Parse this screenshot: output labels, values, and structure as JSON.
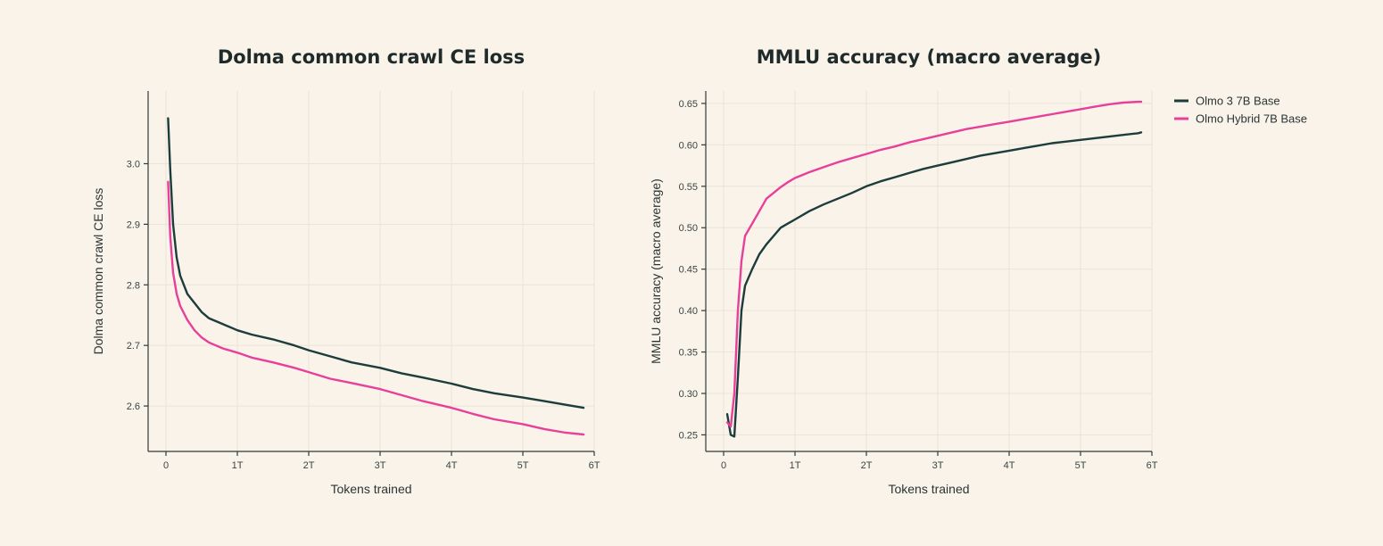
{
  "chart_data": [
    {
      "type": "line",
      "title": "Dolma common crawl CE loss",
      "xlabel": "Tokens trained",
      "ylabel": "Dolma common crawl CE loss",
      "xlim": [
        -0.25,
        6.0
      ],
      "ylim": [
        2.525,
        3.12
      ],
      "xticks": [
        0,
        1,
        2,
        3,
        4,
        5,
        6
      ],
      "xtick_labels": [
        "0",
        "1T",
        "2T",
        "3T",
        "4T",
        "5T",
        "6T"
      ],
      "yticks": [
        2.6,
        2.7,
        2.8,
        2.9,
        3.0
      ],
      "ytick_labels": [
        "2.6",
        "2.7",
        "2.8",
        "2.9",
        "3.0"
      ],
      "grid": true,
      "series": [
        {
          "name": "Olmo 3 7B Base",
          "color": "#1d3c3c",
          "x": [
            0.03,
            0.06,
            0.1,
            0.15,
            0.2,
            0.3,
            0.4,
            0.5,
            0.6,
            0.8,
            1.0,
            1.2,
            1.5,
            1.8,
            2.0,
            2.3,
            2.6,
            3.0,
            3.3,
            3.6,
            4.0,
            4.3,
            4.6,
            5.0,
            5.3,
            5.6,
            5.85
          ],
          "y": [
            3.075,
            2.99,
            2.9,
            2.845,
            2.815,
            2.785,
            2.77,
            2.755,
            2.745,
            2.735,
            2.725,
            2.718,
            2.71,
            2.7,
            2.692,
            2.682,
            2.672,
            2.663,
            2.654,
            2.647,
            2.637,
            2.628,
            2.621,
            2.614,
            2.608,
            2.602,
            2.597
          ]
        },
        {
          "name": "Olmo Hybrid 7B Base",
          "color": "#e8409a",
          "x": [
            0.03,
            0.06,
            0.1,
            0.15,
            0.2,
            0.3,
            0.4,
            0.5,
            0.6,
            0.8,
            1.0,
            1.2,
            1.5,
            1.8,
            2.0,
            2.3,
            2.6,
            3.0,
            3.3,
            3.6,
            4.0,
            4.3,
            4.6,
            5.0,
            5.3,
            5.6,
            5.85
          ],
          "y": [
            2.97,
            2.88,
            2.82,
            2.785,
            2.765,
            2.742,
            2.725,
            2.713,
            2.705,
            2.695,
            2.688,
            2.68,
            2.672,
            2.663,
            2.656,
            2.645,
            2.638,
            2.628,
            2.618,
            2.608,
            2.597,
            2.587,
            2.578,
            2.57,
            2.562,
            2.556,
            2.553
          ]
        }
      ]
    },
    {
      "type": "line",
      "title": "MMLU accuracy (macro average)",
      "xlabel": "Tokens trained",
      "ylabel": "MMLU accuracy (macro average)",
      "xlim": [
        -0.25,
        6.0
      ],
      "ylim": [
        0.23,
        0.665
      ],
      "xticks": [
        0,
        1,
        2,
        3,
        4,
        5,
        6
      ],
      "xtick_labels": [
        "0",
        "1T",
        "2T",
        "3T",
        "4T",
        "5T",
        "6T"
      ],
      "yticks": [
        0.25,
        0.3,
        0.35,
        0.4,
        0.45,
        0.5,
        0.55,
        0.6,
        0.65
      ],
      "ytick_labels": [
        "0.25",
        "0.30",
        "0.35",
        "0.40",
        "0.45",
        "0.50",
        "0.55",
        "0.60",
        "0.65"
      ],
      "grid": true,
      "legend_position": "top-right outside",
      "series": [
        {
          "name": "Olmo 3 7B Base",
          "color": "#1d3c3c",
          "x": [
            0.05,
            0.1,
            0.15,
            0.2,
            0.25,
            0.3,
            0.4,
            0.5,
            0.6,
            0.7,
            0.8,
            0.9,
            1.0,
            1.2,
            1.4,
            1.6,
            1.8,
            2.0,
            2.2,
            2.4,
            2.6,
            2.8,
            3.0,
            3.2,
            3.4,
            3.6,
            3.8,
            4.0,
            4.2,
            4.4,
            4.6,
            4.8,
            5.0,
            5.2,
            5.4,
            5.6,
            5.8,
            5.85
          ],
          "y": [
            0.275,
            0.25,
            0.248,
            0.32,
            0.4,
            0.43,
            0.45,
            0.468,
            0.48,
            0.49,
            0.5,
            0.505,
            0.51,
            0.52,
            0.528,
            0.535,
            0.542,
            0.55,
            0.556,
            0.561,
            0.566,
            0.571,
            0.575,
            0.579,
            0.583,
            0.587,
            0.59,
            0.593,
            0.596,
            0.599,
            0.602,
            0.604,
            0.606,
            0.608,
            0.61,
            0.612,
            0.614,
            0.615
          ]
        },
        {
          "name": "Olmo Hybrid 7B Base",
          "color": "#e8409a",
          "x": [
            0.05,
            0.1,
            0.15,
            0.2,
            0.25,
            0.3,
            0.4,
            0.5,
            0.6,
            0.7,
            0.8,
            0.9,
            1.0,
            1.2,
            1.4,
            1.6,
            1.8,
            2.0,
            2.2,
            2.4,
            2.6,
            2.8,
            3.0,
            3.2,
            3.4,
            3.6,
            3.8,
            4.0,
            4.2,
            4.4,
            4.6,
            4.8,
            5.0,
            5.2,
            5.4,
            5.6,
            5.8,
            5.85
          ],
          "y": [
            0.265,
            0.26,
            0.3,
            0.4,
            0.46,
            0.49,
            0.505,
            0.52,
            0.535,
            0.542,
            0.549,
            0.555,
            0.56,
            0.567,
            0.573,
            0.579,
            0.584,
            0.589,
            0.594,
            0.598,
            0.603,
            0.607,
            0.611,
            0.615,
            0.619,
            0.622,
            0.625,
            0.628,
            0.631,
            0.634,
            0.637,
            0.64,
            0.643,
            0.646,
            0.649,
            0.651,
            0.652,
            0.652
          ]
        }
      ]
    }
  ],
  "legend": {
    "items": [
      {
        "label": "Olmo 3 7B Base",
        "color": "#1d3c3c"
      },
      {
        "label": "Olmo Hybrid 7B Base",
        "color": "#e8409a"
      }
    ]
  }
}
